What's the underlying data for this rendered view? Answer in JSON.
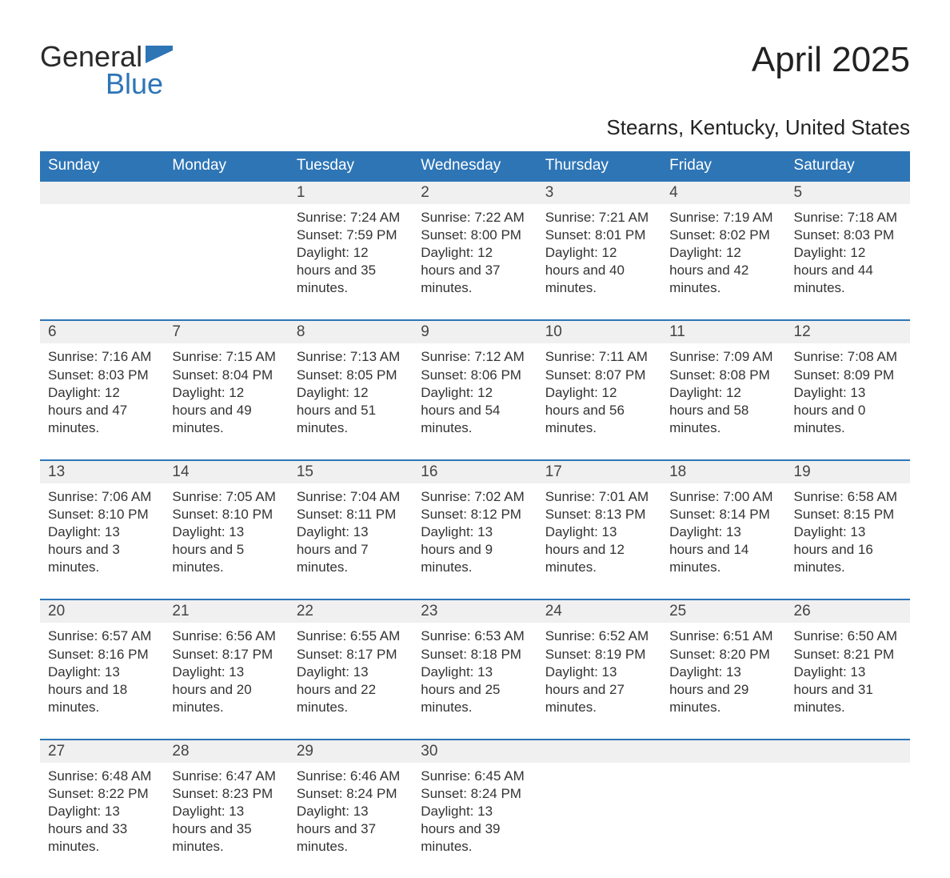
{
  "logo": {
    "word1": "General",
    "word2": "Blue"
  },
  "title": "April 2025",
  "location": "Stearns, Kentucky, United States",
  "colors": {
    "header_bg": "#2E75B6",
    "header_text": "#ffffff",
    "daynum_bg": "#f0f0f0",
    "border_top": "#2E75B6",
    "body_text": "#333333",
    "logo_blue": "#2E75B6"
  },
  "typography": {
    "title_fontsize": 44,
    "location_fontsize": 26,
    "dayhead_fontsize": 19,
    "daynum_fontsize": 19,
    "detail_fontsize": 17,
    "logo_fontsize": 36
  },
  "dayNames": [
    "Sunday",
    "Monday",
    "Tuesday",
    "Wednesday",
    "Thursday",
    "Friday",
    "Saturday"
  ],
  "weeks": [
    {
      "nums": [
        "",
        "",
        "1",
        "2",
        "3",
        "4",
        "5"
      ],
      "cells": [
        "",
        "",
        "Sunrise: 7:24 AM\nSunset: 7:59 PM\nDaylight: 12 hours and 35 minutes.",
        "Sunrise: 7:22 AM\nSunset: 8:00 PM\nDaylight: 12 hours and 37 minutes.",
        "Sunrise: 7:21 AM\nSunset: 8:01 PM\nDaylight: 12 hours and 40 minutes.",
        "Sunrise: 7:19 AM\nSunset: 8:02 PM\nDaylight: 12 hours and 42 minutes.",
        "Sunrise: 7:18 AM\nSunset: 8:03 PM\nDaylight: 12 hours and 44 minutes."
      ]
    },
    {
      "nums": [
        "6",
        "7",
        "8",
        "9",
        "10",
        "11",
        "12"
      ],
      "cells": [
        "Sunrise: 7:16 AM\nSunset: 8:03 PM\nDaylight: 12 hours and 47 minutes.",
        "Sunrise: 7:15 AM\nSunset: 8:04 PM\nDaylight: 12 hours and 49 minutes.",
        "Sunrise: 7:13 AM\nSunset: 8:05 PM\nDaylight: 12 hours and 51 minutes.",
        "Sunrise: 7:12 AM\nSunset: 8:06 PM\nDaylight: 12 hours and 54 minutes.",
        "Sunrise: 7:11 AM\nSunset: 8:07 PM\nDaylight: 12 hours and 56 minutes.",
        "Sunrise: 7:09 AM\nSunset: 8:08 PM\nDaylight: 12 hours and 58 minutes.",
        "Sunrise: 7:08 AM\nSunset: 8:09 PM\nDaylight: 13 hours and 0 minutes."
      ]
    },
    {
      "nums": [
        "13",
        "14",
        "15",
        "16",
        "17",
        "18",
        "19"
      ],
      "cells": [
        "Sunrise: 7:06 AM\nSunset: 8:10 PM\nDaylight: 13 hours and 3 minutes.",
        "Sunrise: 7:05 AM\nSunset: 8:10 PM\nDaylight: 13 hours and 5 minutes.",
        "Sunrise: 7:04 AM\nSunset: 8:11 PM\nDaylight: 13 hours and 7 minutes.",
        "Sunrise: 7:02 AM\nSunset: 8:12 PM\nDaylight: 13 hours and 9 minutes.",
        "Sunrise: 7:01 AM\nSunset: 8:13 PM\nDaylight: 13 hours and 12 minutes.",
        "Sunrise: 7:00 AM\nSunset: 8:14 PM\nDaylight: 13 hours and 14 minutes.",
        "Sunrise: 6:58 AM\nSunset: 8:15 PM\nDaylight: 13 hours and 16 minutes."
      ]
    },
    {
      "nums": [
        "20",
        "21",
        "22",
        "23",
        "24",
        "25",
        "26"
      ],
      "cells": [
        "Sunrise: 6:57 AM\nSunset: 8:16 PM\nDaylight: 13 hours and 18 minutes.",
        "Sunrise: 6:56 AM\nSunset: 8:17 PM\nDaylight: 13 hours and 20 minutes.",
        "Sunrise: 6:55 AM\nSunset: 8:17 PM\nDaylight: 13 hours and 22 minutes.",
        "Sunrise: 6:53 AM\nSunset: 8:18 PM\nDaylight: 13 hours and 25 minutes.",
        "Sunrise: 6:52 AM\nSunset: 8:19 PM\nDaylight: 13 hours and 27 minutes.",
        "Sunrise: 6:51 AM\nSunset: 8:20 PM\nDaylight: 13 hours and 29 minutes.",
        "Sunrise: 6:50 AM\nSunset: 8:21 PM\nDaylight: 13 hours and 31 minutes."
      ]
    },
    {
      "nums": [
        "27",
        "28",
        "29",
        "30",
        "",
        "",
        ""
      ],
      "cells": [
        "Sunrise: 6:48 AM\nSunset: 8:22 PM\nDaylight: 13 hours and 33 minutes.",
        "Sunrise: 6:47 AM\nSunset: 8:23 PM\nDaylight: 13 hours and 35 minutes.",
        "Sunrise: 6:46 AM\nSunset: 8:24 PM\nDaylight: 13 hours and 37 minutes.",
        "Sunrise: 6:45 AM\nSunset: 8:24 PM\nDaylight: 13 hours and 39 minutes.",
        "",
        "",
        ""
      ]
    }
  ]
}
